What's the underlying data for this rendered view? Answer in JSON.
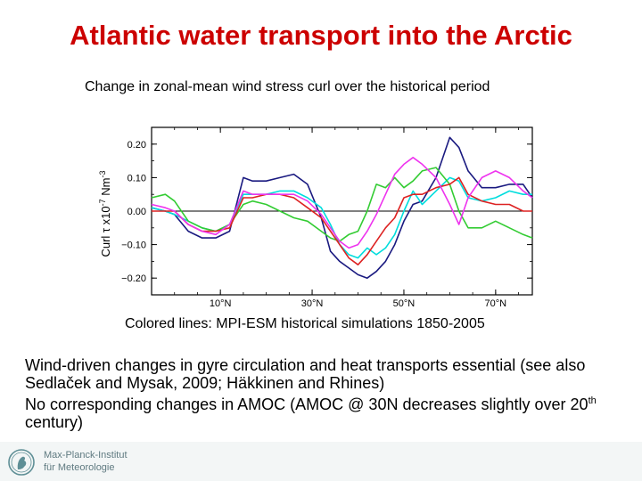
{
  "page": {
    "title": "Atlantic water transport into the Arctic",
    "subtitle": "Change in zonal-mean wind stress curl over the historical period",
    "caption": "Colored  lines: MPI-ESM historical simulations 1850-2005",
    "paragraph1": "Wind-driven changes in gyre circulation and heat transports essential (see also Sedlaček and Mysak, 2009; Häkkinen and Rhines)",
    "paragraph2_main": "No corresponding changes in AMOC (AMOC @ 30N decreases slightly over 20",
    "paragraph2_sup": "th",
    "paragraph2_end": " century)",
    "logo_line1": "Max-Planck-Institut",
    "logo_line2": "für Meteorologie"
  },
  "chart_data": {
    "type": "line",
    "ylabel_main": "Curl τ x10",
    "ylabel_exp": "-7",
    "ylabel_unit": " Nm",
    "ylabel_unit_exp": "-3",
    "xlim": [
      -5,
      78
    ],
    "ylim": [
      -0.25,
      0.25
    ],
    "yticks": [
      -0.2,
      -0.1,
      0.0,
      0.1,
      0.2
    ],
    "ytick_labels": [
      "−0.20",
      "−0.10",
      "0.00",
      "0.10",
      "0.20"
    ],
    "xticks": [
      10,
      30,
      50,
      70
    ],
    "xtick_labels": [
      "10°N",
      "30°N",
      "50°N",
      "70°N"
    ],
    "zero_line": true,
    "series": [
      {
        "color": "#1a1a80",
        "x": [
          -5,
          -2,
          0,
          3,
          6,
          9,
          12,
          15,
          17,
          20,
          23,
          26,
          29,
          32,
          34,
          36,
          38,
          40,
          42,
          44,
          46,
          48,
          50,
          52,
          54,
          57,
          60,
          62,
          64,
          67,
          70,
          73,
          76,
          78
        ],
        "y": [
          0.01,
          0.0,
          -0.01,
          -0.06,
          -0.08,
          -0.08,
          -0.06,
          0.1,
          0.09,
          0.09,
          0.1,
          0.11,
          0.08,
          -0.02,
          -0.12,
          -0.15,
          -0.17,
          -0.19,
          -0.2,
          -0.18,
          -0.15,
          -0.1,
          -0.03,
          0.02,
          0.03,
          0.1,
          0.22,
          0.19,
          0.12,
          0.07,
          0.07,
          0.08,
          0.08,
          0.04
        ]
      },
      {
        "color": "#00dddd",
        "x": [
          -5,
          -2,
          0,
          3,
          6,
          9,
          12,
          15,
          17,
          20,
          23,
          26,
          29,
          32,
          34,
          36,
          38,
          40,
          42,
          44,
          46,
          48,
          50,
          52,
          54,
          57,
          60,
          62,
          64,
          67,
          70,
          73,
          76,
          78
        ],
        "y": [
          0.01,
          0.0,
          -0.01,
          -0.03,
          -0.05,
          -0.06,
          -0.04,
          0.05,
          0.05,
          0.05,
          0.06,
          0.06,
          0.04,
          0.01,
          -0.04,
          -0.1,
          -0.13,
          -0.14,
          -0.11,
          -0.13,
          -0.11,
          -0.07,
          0.0,
          0.06,
          0.02,
          0.06,
          0.1,
          0.09,
          0.04,
          0.03,
          0.04,
          0.06,
          0.05,
          0.05
        ]
      },
      {
        "color": "#33cc33",
        "x": [
          -5,
          -2,
          0,
          3,
          6,
          9,
          12,
          15,
          17,
          20,
          23,
          26,
          29,
          32,
          34,
          36,
          38,
          40,
          42,
          44,
          46,
          48,
          50,
          52,
          54,
          57,
          60,
          62,
          64,
          67,
          70,
          73,
          76,
          78
        ],
        "y": [
          0.04,
          0.05,
          0.03,
          -0.03,
          -0.05,
          -0.06,
          -0.04,
          0.02,
          0.03,
          0.02,
          0.0,
          -0.02,
          -0.03,
          -0.06,
          -0.08,
          -0.09,
          -0.07,
          -0.06,
          0.0,
          0.08,
          0.07,
          0.1,
          0.07,
          0.09,
          0.12,
          0.13,
          0.08,
          0.0,
          -0.05,
          -0.05,
          -0.03,
          -0.05,
          -0.07,
          -0.08
        ]
      },
      {
        "color": "#dd2222",
        "x": [
          -5,
          -2,
          0,
          3,
          6,
          9,
          12,
          15,
          17,
          20,
          23,
          26,
          29,
          32,
          34,
          36,
          38,
          40,
          42,
          44,
          46,
          48,
          50,
          52,
          54,
          57,
          60,
          62,
          64,
          67,
          70,
          73,
          76,
          78
        ],
        "y": [
          0.0,
          0.0,
          0.0,
          -0.04,
          -0.06,
          -0.06,
          -0.05,
          0.04,
          0.04,
          0.05,
          0.05,
          0.04,
          0.01,
          -0.02,
          -0.06,
          -0.1,
          -0.14,
          -0.16,
          -0.13,
          -0.09,
          -0.05,
          -0.02,
          0.04,
          0.05,
          0.05,
          0.07,
          0.08,
          0.1,
          0.05,
          0.03,
          0.02,
          0.02,
          0.0,
          0.0
        ]
      },
      {
        "color": "#ee33ee",
        "x": [
          -5,
          -2,
          0,
          3,
          6,
          9,
          12,
          15,
          17,
          20,
          23,
          26,
          29,
          32,
          34,
          36,
          38,
          40,
          42,
          44,
          46,
          48,
          50,
          52,
          54,
          57,
          60,
          62,
          64,
          67,
          70,
          73,
          76,
          78
        ],
        "y": [
          0.02,
          0.01,
          0.0,
          -0.04,
          -0.06,
          -0.07,
          -0.04,
          0.06,
          0.05,
          0.05,
          0.05,
          0.05,
          0.03,
          -0.01,
          -0.05,
          -0.09,
          -0.11,
          -0.1,
          -0.06,
          -0.01,
          0.05,
          0.11,
          0.14,
          0.16,
          0.14,
          0.1,
          0.02,
          -0.04,
          0.04,
          0.1,
          0.12,
          0.1,
          0.06,
          0.04
        ]
      }
    ]
  }
}
